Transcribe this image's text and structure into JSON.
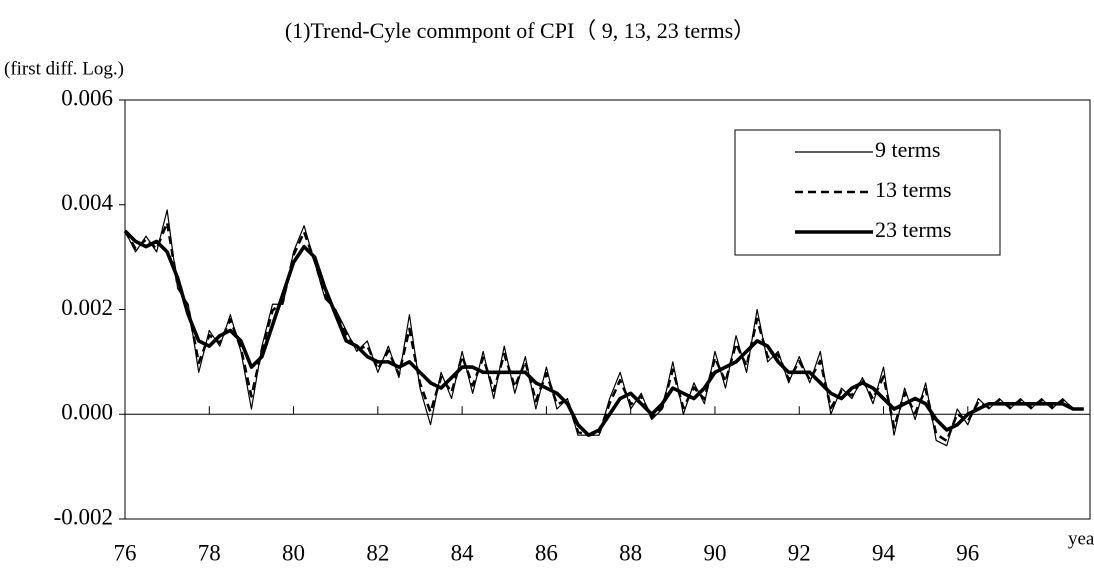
{
  "chart_data": {
    "type": "line",
    "title": "(1)Trend-Cyle commpont of CPI（ 9, 13, 23 terms）",
    "y_label": "(first diff. Log.)",
    "x_label": "year",
    "x": [
      76,
      76.25,
      76.5,
      76.75,
      77,
      77.25,
      77.5,
      77.75,
      78,
      78.25,
      78.5,
      78.75,
      79,
      79.25,
      79.5,
      79.75,
      80,
      80.25,
      80.5,
      80.75,
      81,
      81.25,
      81.5,
      81.75,
      82,
      82.25,
      82.5,
      82.75,
      83,
      83.25,
      83.5,
      83.75,
      84,
      84.25,
      84.5,
      84.75,
      85,
      85.25,
      85.5,
      85.75,
      86,
      86.25,
      86.5,
      86.75,
      87,
      87.25,
      87.5,
      87.75,
      88,
      88.25,
      88.5,
      88.75,
      89,
      89.25,
      89.5,
      89.75,
      90,
      90.25,
      90.5,
      90.75,
      91,
      91.25,
      91.5,
      91.75,
      92,
      92.25,
      92.5,
      92.75,
      93,
      93.25,
      93.5,
      93.75,
      94,
      94.25,
      94.5,
      94.75,
      95,
      95.25,
      95.5,
      95.75,
      96,
      96.25,
      96.5,
      96.75,
      97,
      97.25,
      97.5,
      97.75,
      98,
      98.25,
      98.5,
      98.75
    ],
    "series": [
      {
        "name": "9 terms",
        "color": "#000000",
        "line_style": "solid",
        "line_weight": "thin",
        "values": [
          0.0035,
          0.0031,
          0.0034,
          0.0031,
          0.0039,
          0.0024,
          0.0021,
          0.0008,
          0.0016,
          0.0013,
          0.0019,
          0.0012,
          0.0001,
          0.0013,
          0.0021,
          0.0021,
          0.0031,
          0.0036,
          0.0029,
          0.0022,
          0.002,
          0.0016,
          0.0012,
          0.0014,
          0.0008,
          0.0013,
          0.0007,
          0.0019,
          0.0005,
          -0.0002,
          0.0008,
          0.0003,
          0.0012,
          0.0004,
          0.0012,
          0.0003,
          0.0013,
          0.0004,
          0.0011,
          0.0001,
          0.0009,
          0.0001,
          0.0003,
          -0.0004,
          -0.0004,
          -0.0004,
          0.0003,
          0.0008,
          0.0001,
          0.0004,
          -0.0001,
          0.0001,
          0.001,
          0.0,
          0.0006,
          0.0002,
          0.0012,
          0.0005,
          0.0015,
          0.0008,
          0.002,
          0.001,
          0.0012,
          0.0006,
          0.0011,
          0.0006,
          0.0012,
          0.0,
          0.0005,
          0.0003,
          0.0007,
          0.0002,
          0.0009,
          -0.0004,
          0.0005,
          -0.0001,
          0.0006,
          -0.0005,
          -0.0006,
          0.0001,
          -0.0002,
          0.0003,
          0.0001,
          0.0003,
          0.0001,
          0.0003,
          0.0001,
          0.0003,
          0.0001,
          0.0003,
          0.0001,
          0.0001
        ]
      },
      {
        "name": "13 terms",
        "color": "#000000",
        "line_style": "dashed",
        "line_weight": "medium",
        "values": [
          0.0035,
          0.00316,
          0.00334,
          0.00316,
          0.00366,
          0.00246,
          0.00204,
          0.00098,
          0.00151,
          0.00136,
          0.00181,
          0.00126,
          0.00034,
          0.00124,
          0.00198,
          0.00216,
          0.00304,
          0.00348,
          0.00293,
          0.00226,
          0.00197,
          0.00154,
          0.00123,
          0.00131,
          0.00086,
          0.00121,
          0.00076,
          0.00163,
          0.00059,
          4e-05,
          0.00071,
          0.00042,
          0.00111,
          0.00055,
          0.00108,
          0.00045,
          0.00115,
          0.00052,
          0.00101,
          0.00025,
          0.00078,
          0.00019,
          0.00027,
          -0.00034,
          -0.0004,
          -0.00037,
          0.00021,
          0.00065,
          0.00019,
          0.00034,
          -7e-05,
          0.00013,
          0.00085,
          0.00012,
          0.00051,
          0.00029,
          0.00108,
          0.00062,
          0.00135,
          0.00092,
          0.00182,
          0.00109,
          0.00114,
          0.00066,
          0.00101,
          0.00066,
          0.00102,
          0.00012,
          0.00044,
          0.00036,
          0.00067,
          0.00029,
          0.00072,
          -0.00025,
          0.00041,
          2e-05,
          0.00048,
          -0.00038,
          -0.00051,
          1e-05,
          -0.00014,
          0.00024,
          0.00013,
          0.00027,
          0.00013,
          0.00027,
          0.00013,
          0.00027,
          0.00013,
          0.00027,
          0.0001,
          0.0001
        ]
      },
      {
        "name": "23 terms",
        "color": "#000000",
        "line_style": "solid",
        "line_weight": "thick",
        "values": [
          0.0035,
          0.0033,
          0.0032,
          0.0033,
          0.0031,
          0.0026,
          0.0019,
          0.0014,
          0.0013,
          0.0015,
          0.0016,
          0.0014,
          0.0009,
          0.0011,
          0.0017,
          0.0023,
          0.0029,
          0.0032,
          0.003,
          0.0024,
          0.0019,
          0.0014,
          0.0013,
          0.0011,
          0.001,
          0.001,
          0.0009,
          0.001,
          0.0008,
          0.0006,
          0.0005,
          0.0007,
          0.0009,
          0.0009,
          0.0008,
          0.0008,
          0.0008,
          0.0008,
          0.0008,
          0.0006,
          0.0005,
          0.0004,
          0.0002,
          -0.0002,
          -0.0004,
          -0.0003,
          0.0,
          0.0003,
          0.0004,
          0.0002,
          0.0,
          0.0002,
          0.0005,
          0.0004,
          0.0003,
          0.0005,
          0.0008,
          0.0009,
          0.001,
          0.0012,
          0.0014,
          0.0013,
          0.001,
          0.0008,
          0.0008,
          0.0008,
          0.0006,
          0.0004,
          0.0003,
          0.0005,
          0.0006,
          0.0005,
          0.0003,
          0.0001,
          0.0002,
          0.0003,
          0.0002,
          -0.0001,
          -0.0003,
          -0.0002,
          0.0,
          0.0001,
          0.0002,
          0.0002,
          0.0002,
          0.0002,
          0.0002,
          0.0002,
          0.0002,
          0.0002,
          0.0001,
          0.0001
        ]
      }
    ],
    "xlim": [
      76,
      98.9
    ],
    "xticks": [
      76,
      78,
      80,
      82,
      84,
      86,
      88,
      90,
      92,
      94,
      96
    ],
    "ylim": [
      -0.002,
      0.006
    ],
    "yticks": [
      -0.002,
      {
        "value": 0,
        "label": "0.000"
      },
      0.002,
      0.004,
      0.006
    ],
    "grid": false,
    "legend": "top-right"
  }
}
